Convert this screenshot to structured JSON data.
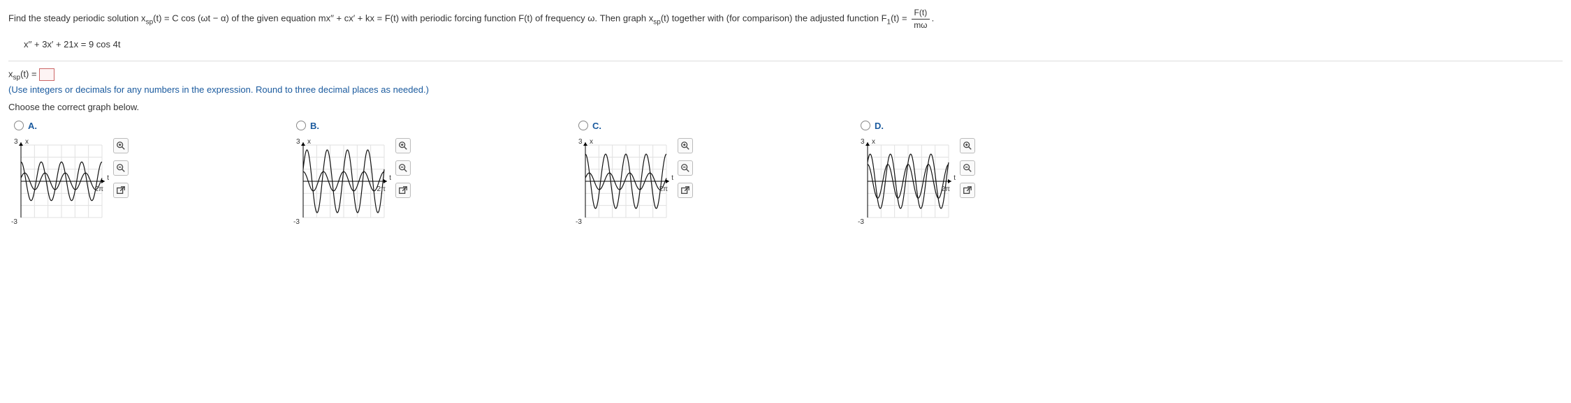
{
  "problem": {
    "intro": "Find the steady periodic solution x",
    "sp": "sp",
    "intro2": "(t) = C cos (ωt − α) of the given equation mx′′ + cx′ + kx = F(t) with periodic forcing function F(t) of frequency ω. Then graph x",
    "intro3": "(t) together with (for comparison) the adjusted function F",
    "f1sub": "1",
    "intro4": "(t) = ",
    "frac_num": "F(t)",
    "frac_den": "mω",
    "dot": ".",
    "equation": "x′′ + 3x′ + 21x = 9 cos 4t"
  },
  "answer": {
    "lhs1": "x",
    "sp": "sp",
    "lhs2": "(t) = ",
    "hint": "(Use integers or decimals for any numbers in the expression. Round to three decimal places as needed.)"
  },
  "prompt": "Choose the correct graph below.",
  "choices": {
    "a": "A.",
    "b": "B.",
    "c": "C.",
    "d": "D."
  },
  "graph": {
    "x_axis_label": "x",
    "t_label": "t",
    "ytick_top": "3",
    "ytick_bot": "-3",
    "two_pi": "2π",
    "grid_color": "#e0e0e0",
    "axis_color": "#000000",
    "curve1_color": "#111111",
    "curve2_color": "#111111",
    "background": "#ffffff",
    "xlim": [
      0,
      6.283
    ],
    "ylim": [
      -3,
      3
    ],
    "graphs": {
      "A": {
        "c1_amp": 1.6,
        "c1_freq": 4,
        "c1_phase": 0.0,
        "c2_amp": 0.69,
        "c2_freq": 4,
        "c2_phase": 1.18
      },
      "B": {
        "c1_amp": 0.8,
        "c1_freq": 4,
        "c1_phase": 0.0,
        "c2_amp": 2.6,
        "c2_freq": 4,
        "c2_phase": 1.18
      },
      "C": {
        "c1_amp": 0.69,
        "c1_freq": 4,
        "c1_phase": 1.18,
        "c2_amp": 2.25,
        "c2_freq": 4,
        "c2_phase": 0.0
      },
      "D": {
        "c1_amp": 1.4,
        "c1_freq": 4,
        "c1_phase": 0.0,
        "c2_amp": 2.25,
        "c2_freq": 4,
        "c2_phase": 0.8
      }
    }
  },
  "icons": {
    "zoom_in": "zoom-in",
    "zoom_out": "zoom-out",
    "popout": "popout"
  }
}
